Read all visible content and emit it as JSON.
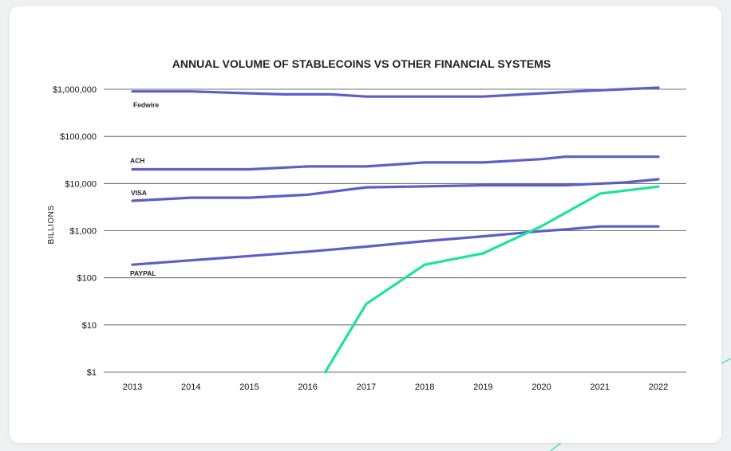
{
  "chart_data": {
    "type": "line",
    "title": "ANNUAL VOLUME OF STABLECOINS VS OTHER FINANCIAL SYSTEMS",
    "xlabel": "",
    "ylabel": "BILLIONS",
    "y_scale": "log",
    "ylim": [
      1,
      1000000
    ],
    "y_ticks": [
      1,
      10,
      100,
      1000,
      10000,
      100000,
      1000000
    ],
    "y_tick_labels": [
      "$1",
      "$10",
      "$100",
      "$1,000",
      "$10,000",
      "$100,000",
      "$1,000,000"
    ],
    "grid": "horizontal",
    "legend": "inline labels",
    "x_tick_labels": [
      "2013",
      "2014",
      "2015",
      "2016",
      "2017",
      "2018",
      "2019",
      "2020",
      "2021",
      "2022"
    ],
    "series": [
      {
        "name": "Fedwire",
        "color": "#5b5fc7",
        "x": [
          2013,
          2014,
          2015,
          2015.6,
          2016.4,
          2017,
          2018,
          2019,
          2020,
          2020.6,
          2021.4,
          2022
        ],
        "values": [
          900000,
          900000,
          820000,
          780000,
          780000,
          700000,
          700000,
          700000,
          820000,
          900000,
          1000000,
          1080000
        ]
      },
      {
        "name": "ACH",
        "color": "#5b5fc7",
        "x": [
          2013,
          2014,
          2015,
          2016,
          2017,
          2018,
          2019,
          2020,
          2020.4,
          2021.4,
          2022
        ],
        "values": [
          20000,
          20000,
          20000,
          23000,
          23000,
          28000,
          28000,
          33000,
          37000,
          37000,
          37000
        ]
      },
      {
        "name": "VISA",
        "color": "#5b5fc7",
        "x": [
          2013,
          2014,
          2015,
          2016,
          2017,
          2018,
          2019,
          2020,
          2020.4,
          2021.4,
          2022
        ],
        "values": [
          4300,
          5000,
          5000,
          5800,
          8300,
          8700,
          9200,
          9200,
          9200,
          10500,
          12300
        ]
      },
      {
        "name": "PAYPAL",
        "color": "#5b5fc7",
        "x": [
          2013,
          2014,
          2015,
          2016,
          2017,
          2018,
          2019,
          2020,
          2020.4,
          2021,
          2022
        ],
        "values": [
          190,
          235,
          290,
          360,
          460,
          600,
          760,
          980,
          1060,
          1230,
          1230
        ]
      },
      {
        "name": "",
        "color": "#1ee39a",
        "x": [
          2016.3,
          2017,
          2018,
          2019,
          2020,
          2021,
          2022
        ],
        "values": [
          1,
          28,
          190,
          330,
          1250,
          6100,
          8600
        ]
      }
    ]
  }
}
